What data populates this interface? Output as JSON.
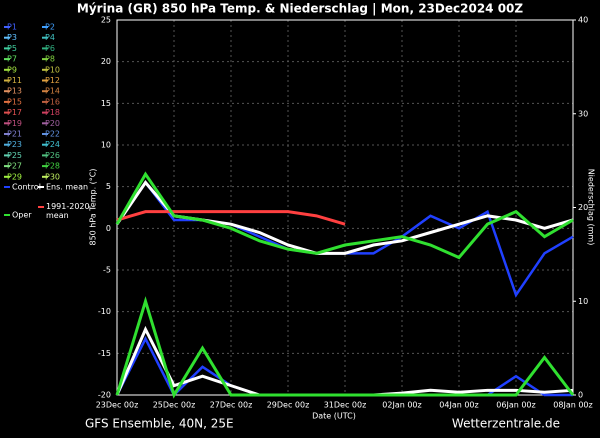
{
  "chart_data": {
    "type": "line",
    "title": "Mýrina  (GR)  850 hPa Temp. & Niederschlag | Mon, 23Dec2024 00Z",
    "ylabel": "850 hPa Temp. (°C)",
    "y2label": "Niederschlag (mm)",
    "xlabel": "Date (UTC)",
    "footer_left": "GFS Ensemble, 40N, 25E",
    "footer_right": "Wetterzentrale.de",
    "xlim": [
      0,
      16
    ],
    "xticks": [
      {
        "value": 0,
        "label": "23Dec 00z"
      },
      {
        "value": 2,
        "label": "25Dec 00z"
      },
      {
        "value": 4,
        "label": "27Dec 00z"
      },
      {
        "value": 6,
        "label": "29Dec 00z"
      },
      {
        "value": 8,
        "label": "31Dec 00z"
      },
      {
        "value": 10,
        "label": "02Jan 00z"
      },
      {
        "value": 12,
        "label": "04Jan 00z"
      },
      {
        "value": 14,
        "label": "06Jan 00z"
      },
      {
        "value": 16,
        "label": "08Jan 00z"
      }
    ],
    "ylim": [
      -20,
      25
    ],
    "yticks": [
      -20,
      -15,
      -10,
      -5,
      0,
      5,
      10,
      15,
      20,
      25
    ],
    "y2lim": [
      0,
      40
    ],
    "y2ticks": [
      0,
      10,
      20,
      30,
      40
    ],
    "grid": true,
    "x": [
      0,
      1,
      2,
      3,
      4,
      5,
      6,
      7,
      8,
      9,
      10,
      11,
      12,
      13,
      14,
      15,
      16
    ],
    "members": [
      {
        "name": "P1",
        "color": "#4060ff"
      },
      {
        "name": "P2",
        "color": "#40a0ff"
      },
      {
        "name": "P3",
        "color": "#60c0ff"
      },
      {
        "name": "P4",
        "color": "#40c0c0"
      },
      {
        "name": "P5",
        "color": "#40d0a0"
      },
      {
        "name": "P6",
        "color": "#30b080"
      },
      {
        "name": "P7",
        "color": "#60e060"
      },
      {
        "name": "P8",
        "color": "#80d040"
      },
      {
        "name": "P9",
        "color": "#a0e040"
      },
      {
        "name": "P10",
        "color": "#c0c040"
      },
      {
        "name": "P11",
        "color": "#d0b040"
      },
      {
        "name": "P12",
        "color": "#e0a040"
      },
      {
        "name": "P13",
        "color": "#e09060"
      },
      {
        "name": "P14",
        "color": "#d08040"
      },
      {
        "name": "P15",
        "color": "#e07040"
      },
      {
        "name": "P16",
        "color": "#c06040"
      },
      {
        "name": "P17",
        "color": "#e05050"
      },
      {
        "name": "P18",
        "color": "#d04060"
      },
      {
        "name": "P19",
        "color": "#c05080"
      },
      {
        "name": "P20",
        "color": "#a060a0"
      },
      {
        "name": "P21",
        "color": "#8080d0"
      },
      {
        "name": "P22",
        "color": "#6090e0"
      },
      {
        "name": "P23",
        "color": "#50b0e0"
      },
      {
        "name": "P24",
        "color": "#40c0d0"
      },
      {
        "name": "P25",
        "color": "#60d0b0"
      },
      {
        "name": "P26",
        "color": "#50c080"
      },
      {
        "name": "P27",
        "color": "#80e080"
      },
      {
        "name": "P28",
        "color": "#40d040"
      },
      {
        "name": "P29",
        "color": "#a0f040"
      },
      {
        "name": "P30",
        "color": "#c0f060"
      }
    ],
    "series": [
      {
        "name": "Control",
        "color": "#2040ff",
        "width": 2.5,
        "values": [
          0.5,
          5.5,
          1,
          1,
          0.5,
          -1,
          -2.5,
          -3,
          -3,
          -3,
          -1,
          1.5,
          0,
          2,
          -8,
          -3,
          -1
        ]
      },
      {
        "name": "Ens. mean",
        "color": "#ffffff",
        "width": 3,
        "values": [
          0.5,
          5.5,
          1.5,
          1,
          0.5,
          -0.5,
          -2,
          -3,
          -3,
          -2,
          -1.5,
          -0.5,
          0.5,
          1.5,
          1,
          0,
          1
        ]
      },
      {
        "name": "1991-2020 mean",
        "color": "#ff4040",
        "width": 3,
        "values": [
          1,
          2,
          2,
          2,
          2,
          2,
          2,
          1.5,
          0.5,
          null,
          null,
          null,
          null,
          null,
          null,
          null,
          null
        ]
      },
      {
        "name": "Oper",
        "color": "#30e030",
        "width": 3,
        "values": [
          0.5,
          6.5,
          1.5,
          1,
          0,
          -1.5,
          -2.5,
          -3,
          -2,
          -1.5,
          -1,
          -2,
          -3.5,
          0.5,
          2,
          -1,
          1
        ]
      }
    ],
    "precip_series": [
      {
        "color": "#2040ff",
        "width": 2.5,
        "axis": "y2",
        "values": [
          0,
          6,
          0,
          3,
          1,
          0,
          0,
          0,
          0,
          0,
          0,
          0,
          0,
          0,
          2,
          0,
          0
        ]
      },
      {
        "color": "#ffffff",
        "width": 3,
        "axis": "y2",
        "values": [
          0,
          7,
          1,
          2,
          1,
          0,
          0,
          0,
          0,
          0,
          0.2,
          0.5,
          0.3,
          0.5,
          0.5,
          0.3,
          0.5
        ]
      },
      {
        "color": "#30e030",
        "width": 3,
        "axis": "y2",
        "values": [
          0,
          10,
          0,
          5,
          0,
          0,
          0,
          0,
          0,
          0,
          0,
          0,
          0,
          0,
          0,
          4,
          0
        ]
      }
    ]
  }
}
